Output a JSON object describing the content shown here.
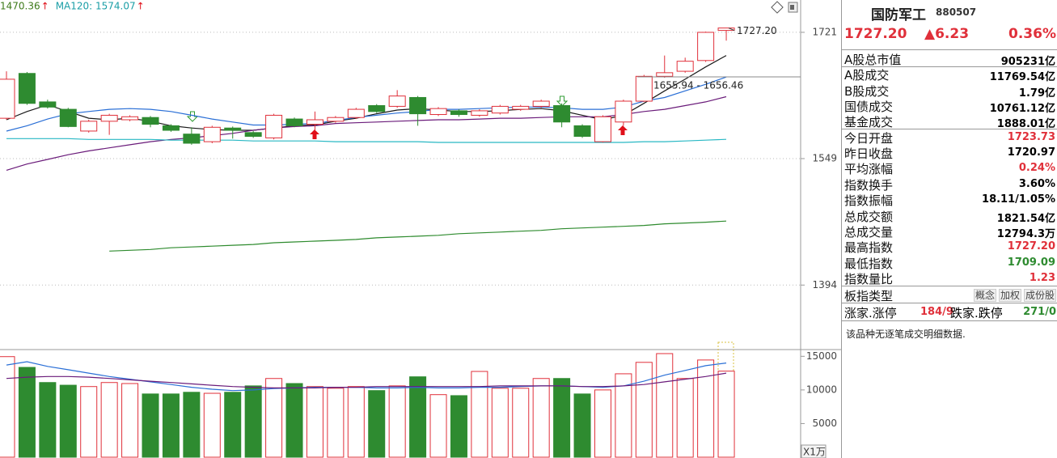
{
  "chart_data": [
    {
      "type": "candlestick",
      "log": true,
      "ylim": [
        1321,
        1768
      ],
      "yticks": [
        1394,
        1549,
        1721
      ],
      "grid": true,
      "up_color": "#e0303a",
      "down_color": "#2e8b30",
      "legend": [
        {
          "text": "1470.36",
          "color": "#3d7a1a"
        },
        {
          "text": "MA120: 1574.07",
          "color": "#1a9ea6"
        }
      ],
      "legend_arrow": "↑",
      "annotations": [
        {
          "text": "1727.20"
        },
        {
          "text": "1655.94 - 1656.46"
        }
      ],
      "open": [
        1602,
        1663,
        1624,
        1614,
        1585,
        1598,
        1600,
        1603,
        1592,
        1581,
        1571,
        1589,
        1583,
        1576,
        1601,
        1594,
        1598,
        1603,
        1619,
        1618,
        1630,
        1607,
        1612,
        1606,
        1609,
        1614,
        1618,
        1619,
        1592,
        1571,
        1597,
        1625,
        1659,
        1666,
        1681,
        1723.73
      ],
      "high": [
        1666,
        1665,
        1627,
        1616,
        1600,
        1608,
        1606,
        1605,
        1594,
        1590,
        1592,
        1591,
        1585,
        1608,
        1603,
        1611,
        1605,
        1616,
        1621,
        1640,
        1632,
        1617,
        1614,
        1614,
        1620,
        1620,
        1627,
        1622,
        1594,
        1606,
        1627,
        1661,
        1688,
        1685,
        1722,
        1727.2
      ],
      "low": [
        1600,
        1620,
        1615,
        1590,
        1583,
        1580,
        1598,
        1590,
        1584,
        1567,
        1569,
        1575,
        1576,
        1574,
        1590,
        1585,
        1596,
        1601,
        1609,
        1616,
        1592,
        1605,
        1604,
        1604,
        1607,
        1612,
        1616,
        1590,
        1576,
        1570,
        1592,
        1624,
        1657,
        1664,
        1679,
        1709.09
      ],
      "close": [
        1655,
        1622,
        1617,
        1591,
        1598,
        1606,
        1604,
        1594,
        1586,
        1569,
        1590,
        1586,
        1578,
        1606,
        1592,
        1600,
        1603,
        1614,
        1611,
        1632,
        1608,
        1615,
        1607,
        1612,
        1618,
        1618,
        1625,
        1597,
        1578,
        1604,
        1625,
        1659,
        1664,
        1680,
        1720.97,
        1727.2
      ],
      "series": [
        {
          "color": "#1a1a1a",
          "values": [
            1600,
            1611,
            1620,
            1611,
            1602,
            1600,
            1602,
            1598,
            1592,
            1589,
            1587,
            1586,
            1586,
            1589,
            1592,
            1593,
            1598,
            1602,
            1608,
            1613,
            1615,
            1613,
            1611,
            1611,
            1612,
            1614,
            1615,
            1612,
            1606,
            1600,
            1606,
            1622,
            1639,
            1655,
            1672,
            1688
          ]
        },
        {
          "color": "#2a6fd6",
          "values": [
            1585,
            1592,
            1601,
            1608,
            1611,
            1614,
            1615,
            1614,
            1611,
            1606,
            1601,
            1597,
            1593,
            1593,
            1594,
            1595,
            1599,
            1603,
            1606,
            1609,
            1611,
            1614,
            1614,
            1615,
            1616,
            1617,
            1617,
            1616,
            1614,
            1614,
            1617,
            1625,
            1630,
            1639,
            1648,
            1658
          ]
        },
        {
          "color": "#6a1b7a",
          "values": [
            1534,
            1542,
            1548,
            1554,
            1559,
            1563,
            1567,
            1571,
            1574,
            1576,
            1579,
            1582,
            1586,
            1589,
            1591,
            1592,
            1595,
            1596,
            1597,
            1598,
            1599,
            1600,
            1600,
            1601,
            1602,
            1602,
            1603,
            1604,
            1604,
            1604,
            1607,
            1611,
            1614,
            1619,
            1624,
            1631
          ]
        },
        {
          "color": "#29b8c4",
          "values": [
            1575,
            1575,
            1575,
            1575,
            1574,
            1574,
            1574,
            1574,
            1573,
            1573,
            1573,
            1573,
            1572,
            1572,
            1572,
            1572,
            1571,
            1571,
            1571,
            1571,
            1571,
            1570,
            1570,
            1570,
            1570,
            1570,
            1570,
            1570,
            1570,
            1570,
            1570,
            1571,
            1571,
            1572,
            1573,
            1574.07
          ]
        },
        {
          "color": "#2e8b2e",
          "values": [
            null,
            null,
            null,
            null,
            null,
            1434,
            1435,
            1436,
            1438,
            1439,
            1440,
            1441,
            1442,
            1444,
            1445,
            1446,
            1447,
            1448,
            1450,
            1451,
            1452,
            1453,
            1455,
            1456,
            1457,
            1458,
            1459,
            1461,
            1462,
            1463,
            1464,
            1465,
            1467,
            1468,
            1469,
            1470.36
          ]
        }
      ]
    },
    {
      "type": "bar",
      "ylim": [
        0,
        16000
      ],
      "yticks": [
        5000,
        10000,
        15000
      ],
      "unit_label": "X1万",
      "values": [
        14950,
        13350,
        11100,
        10700,
        10500,
        11100,
        10950,
        9400,
        9400,
        9650,
        9500,
        9650,
        10600,
        11700,
        10950,
        10500,
        10250,
        10500,
        9900,
        10600,
        11950,
        9300,
        9150,
        12750,
        10250,
        10250,
        11700,
        11700,
        9400,
        10000,
        12400,
        14100,
        15400,
        11700,
        14450,
        12794.3
      ],
      "series": [
        {
          "color": "#2a6fd6",
          "values": [
            13700,
            14200,
            13500,
            13000,
            12500,
            12000,
            11600,
            11200,
            10800,
            10400,
            10100,
            9900,
            10000,
            10200,
            10300,
            10400,
            10400,
            10400,
            10300,
            10300,
            10400,
            10300,
            10300,
            10400,
            10400,
            10500,
            10600,
            10600,
            10500,
            10400,
            10600,
            11300,
            12200,
            12900,
            13600,
            14000
          ]
        },
        {
          "color": "#6a1b7a",
          "values": [
            11700,
            11900,
            12000,
            12000,
            11900,
            11700,
            11500,
            11300,
            11100,
            10900,
            10700,
            10500,
            10400,
            10300,
            10300,
            10300,
            10400,
            10400,
            10500,
            10500,
            10500,
            10500,
            10500,
            10500,
            10600,
            10600,
            10600,
            10600,
            10500,
            10500,
            10600,
            10800,
            11200,
            11600,
            12000,
            12500
          ]
        }
      ]
    }
  ],
  "quote_panel": {
    "name": "国防军工",
    "code": "880507",
    "price": "1727.20",
    "change": "▲6.23",
    "change_pct": "0.36%",
    "rows": [
      {
        "label": "A股总市值",
        "value": "905231亿",
        "color": "#000000"
      },
      {
        "label": "A股成交",
        "value": "11769.54亿",
        "color": "#000000"
      },
      {
        "label": "B股成交",
        "value": "1.79亿",
        "color": "#000000"
      },
      {
        "label": "国债成交",
        "value": "10761.12亿",
        "color": "#000000"
      },
      {
        "label": "基金成交",
        "value": "1888.01亿",
        "color": "#000000"
      },
      {
        "label": "今日开盘",
        "value": "1723.73",
        "color": "#e0303a"
      },
      {
        "label": "昨日收盘",
        "value": "1720.97",
        "color": "#000000"
      },
      {
        "label": "平均涨幅",
        "value": "0.24%",
        "color": "#e0303a"
      },
      {
        "label": "指数换手",
        "value": "3.60%",
        "color": "#000000"
      },
      {
        "label": "指数振幅",
        "value": "18.11/1.05%",
        "color": "#000000"
      },
      {
        "label": "总成交额",
        "value": "1821.54亿",
        "color": "#000000"
      },
      {
        "label": "总成交量",
        "value": "12794.3万",
        "color": "#000000"
      },
      {
        "label": "最高指数",
        "value": "1727.20",
        "color": "#e0303a"
      },
      {
        "label": "最低指数",
        "value": "1709.09",
        "color": "#2e8b30"
      },
      {
        "label": "指数量比",
        "value": "1.23",
        "color": "#e0303a"
      }
    ],
    "index_type_label": "板指类型",
    "index_types": [
      "概念",
      "加权",
      "成份股"
    ],
    "rise_label": "涨家.涨停",
    "rise_value": "184/9",
    "fall_label": "跌家.跌停",
    "fall_value": "271/0",
    "note": "该品种无逐笔成交明细数据."
  }
}
